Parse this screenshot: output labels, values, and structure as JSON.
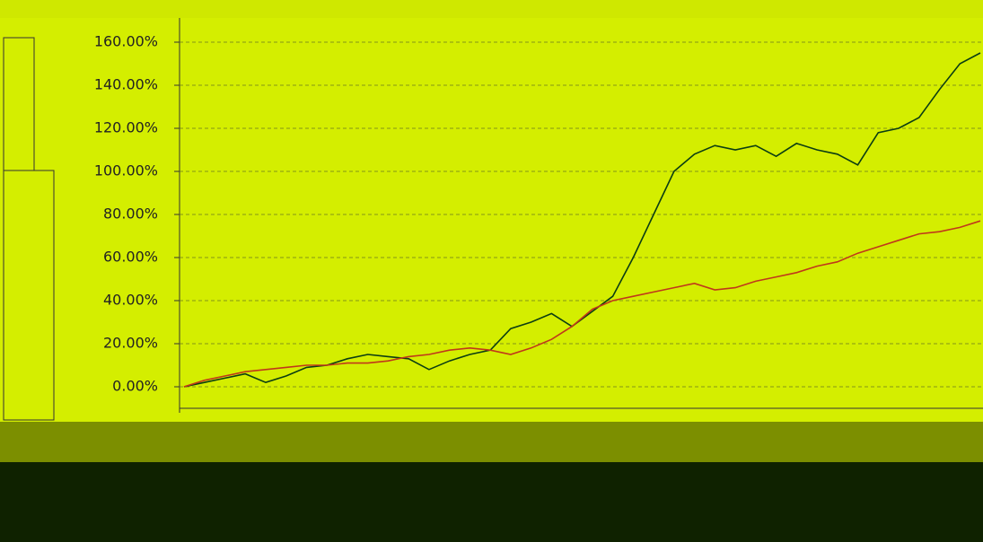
{
  "chart_data": {
    "type": "line",
    "categories": [
      null,
      null,
      null,
      null,
      null,
      null,
      null,
      null,
      null,
      null,
      null,
      null,
      null,
      null,
      null,
      null,
      null,
      null,
      null,
      null,
      null,
      null,
      null,
      null,
      null,
      null,
      null,
      null,
      null,
      null,
      null,
      null,
      null,
      null,
      null,
      null,
      null,
      null,
      null,
      null
    ],
    "series": [
      {
        "color": "#0b3d12",
        "values": [
          0,
          2,
          4,
          6,
          2,
          5,
          9,
          10,
          13,
          15,
          14,
          13,
          8,
          12,
          15,
          17,
          27,
          30,
          34,
          28,
          35,
          42,
          60,
          80,
          100,
          108,
          112,
          110,
          112,
          107,
          113,
          110,
          108,
          103,
          118,
          120,
          125,
          138,
          150,
          155
        ]
      },
      {
        "color": "#c0381a",
        "values": [
          0,
          3,
          5,
          7,
          8,
          9,
          10,
          10,
          11,
          11,
          12,
          14,
          15,
          17,
          18,
          17,
          15,
          18,
          22,
          28,
          36,
          40,
          42,
          44,
          46,
          48,
          45,
          46,
          49,
          51,
          53,
          56,
          58,
          62,
          65,
          68,
          71,
          72,
          74,
          77
        ]
      }
    ],
    "ylim": [
      -10,
      165
    ],
    "yticks": [
      {
        "value": 0,
        "label": "0.00%"
      },
      {
        "value": 20,
        "label": "20.00%"
      },
      {
        "value": 40,
        "label": "40.00%"
      },
      {
        "value": 60,
        "label": "60.00%"
      },
      {
        "value": 80,
        "label": "80.00%"
      },
      {
        "value": 100,
        "label": "100.00%"
      },
      {
        "value": 120,
        "label": "120.00%"
      },
      {
        "value": 140,
        "label": "140.00%"
      },
      {
        "value": 160,
        "label": "160.00%"
      }
    ],
    "grid": true
  }
}
